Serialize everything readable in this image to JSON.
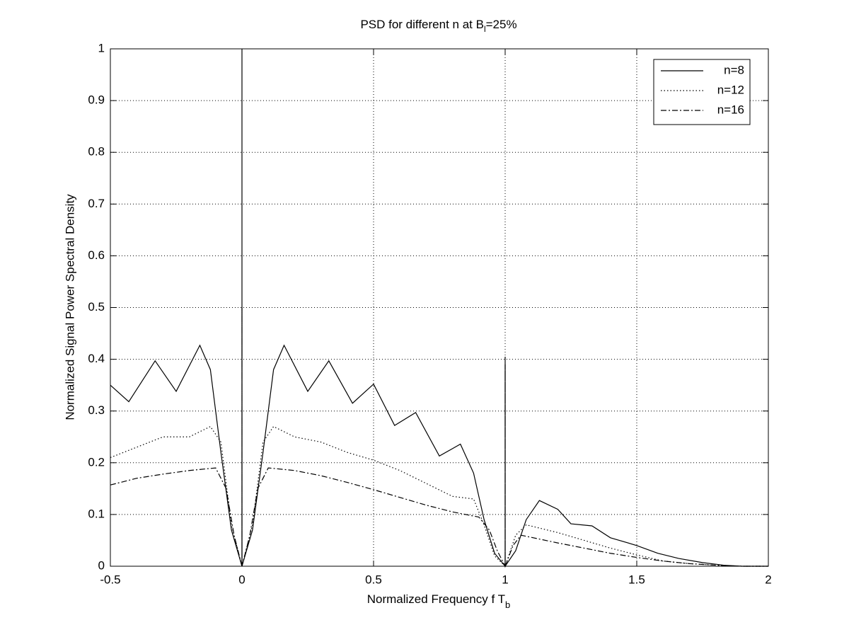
{
  "chart_data": {
    "type": "line",
    "title": [
      "PSD for different n at B",
      "l",
      "=25%"
    ],
    "xlabel": [
      "Normalized Frequency f T",
      "b"
    ],
    "ylabel": "Normalized Signal Power Spectral Density",
    "xlim": [
      -0.5,
      2
    ],
    "ylim": [
      0,
      1
    ],
    "xticks": [
      -0.5,
      0,
      0.5,
      1,
      1.5,
      2
    ],
    "yticks": [
      0,
      0.1,
      0.2,
      0.3,
      0.4,
      0.5,
      0.6,
      0.7,
      0.8,
      0.9,
      1
    ],
    "grid": true,
    "legend": "top-right",
    "series": [
      {
        "name": "n=8",
        "color": "#000000",
        "linestyle": "solid",
        "x": [
          -0.5,
          -0.43,
          -0.33,
          -0.25,
          -0.16,
          -0.12,
          -0.08,
          -0.04,
          0,
          0,
          0,
          0.04,
          0.08,
          0.12,
          0.16,
          0.25,
          0.33,
          0.42,
          0.5,
          0.58,
          0.66,
          0.75,
          0.83,
          0.88,
          0.92,
          0.96,
          1,
          1,
          1,
          1.04,
          1.08,
          1.13,
          1.2,
          1.25,
          1.33,
          1.4,
          1.5,
          1.58,
          1.66,
          1.75,
          1.83,
          1.9,
          2
        ],
        "values": [
          0.35,
          0.318,
          0.397,
          0.338,
          0.427,
          0.38,
          0.22,
          0.07,
          0,
          1,
          0,
          0.07,
          0.22,
          0.38,
          0.427,
          0.338,
          0.397,
          0.315,
          0.352,
          0.272,
          0.297,
          0.213,
          0.236,
          0.18,
          0.09,
          0.025,
          0,
          0.405,
          0,
          0.03,
          0.09,
          0.127,
          0.11,
          0.082,
          0.078,
          0.055,
          0.04,
          0.025,
          0.015,
          0.007,
          0.002,
          0,
          0
        ]
      },
      {
        "name": "n=12",
        "color": "#000000",
        "linestyle": "dotted",
        "x": [
          -0.5,
          -0.4,
          -0.3,
          -0.2,
          -0.12,
          -0.08,
          -0.04,
          0,
          0.04,
          0.08,
          0.12,
          0.2,
          0.3,
          0.4,
          0.5,
          0.6,
          0.7,
          0.8,
          0.88,
          0.92,
          0.96,
          1,
          1.04,
          1.08,
          1.2,
          1.3,
          1.4,
          1.5,
          1.6,
          1.7,
          1.8,
          1.9,
          2
        ],
        "values": [
          0.21,
          0.23,
          0.25,
          0.25,
          0.27,
          0.24,
          0.08,
          0,
          0.08,
          0.24,
          0.27,
          0.25,
          0.24,
          0.22,
          0.205,
          0.185,
          0.16,
          0.135,
          0.13,
          0.08,
          0.02,
          0,
          0.06,
          0.08,
          0.065,
          0.05,
          0.035,
          0.022,
          0.01,
          0.005,
          0.002,
          0,
          0
        ]
      },
      {
        "name": "n=16",
        "color": "#000000",
        "linestyle": "dashdot",
        "x": [
          -0.5,
          -0.4,
          -0.3,
          -0.2,
          -0.1,
          -0.06,
          -0.03,
          0,
          0,
          0,
          0.03,
          0.06,
          0.1,
          0.2,
          0.3,
          0.4,
          0.5,
          0.6,
          0.7,
          0.8,
          0.9,
          0.94,
          0.97,
          1,
          1,
          1,
          1.03,
          1.06,
          1.2,
          1.3,
          1.4,
          1.5,
          1.6,
          1.7,
          1.8,
          1.9,
          2
        ],
        "values": [
          0.157,
          0.17,
          0.178,
          0.185,
          0.19,
          0.15,
          0.06,
          0,
          0.5,
          0,
          0.06,
          0.15,
          0.19,
          0.185,
          0.175,
          0.162,
          0.148,
          0.133,
          0.118,
          0.105,
          0.095,
          0.07,
          0.03,
          0,
          0.39,
          0,
          0.04,
          0.06,
          0.045,
          0.035,
          0.025,
          0.017,
          0.01,
          0.005,
          0.002,
          0,
          0
        ]
      }
    ]
  }
}
